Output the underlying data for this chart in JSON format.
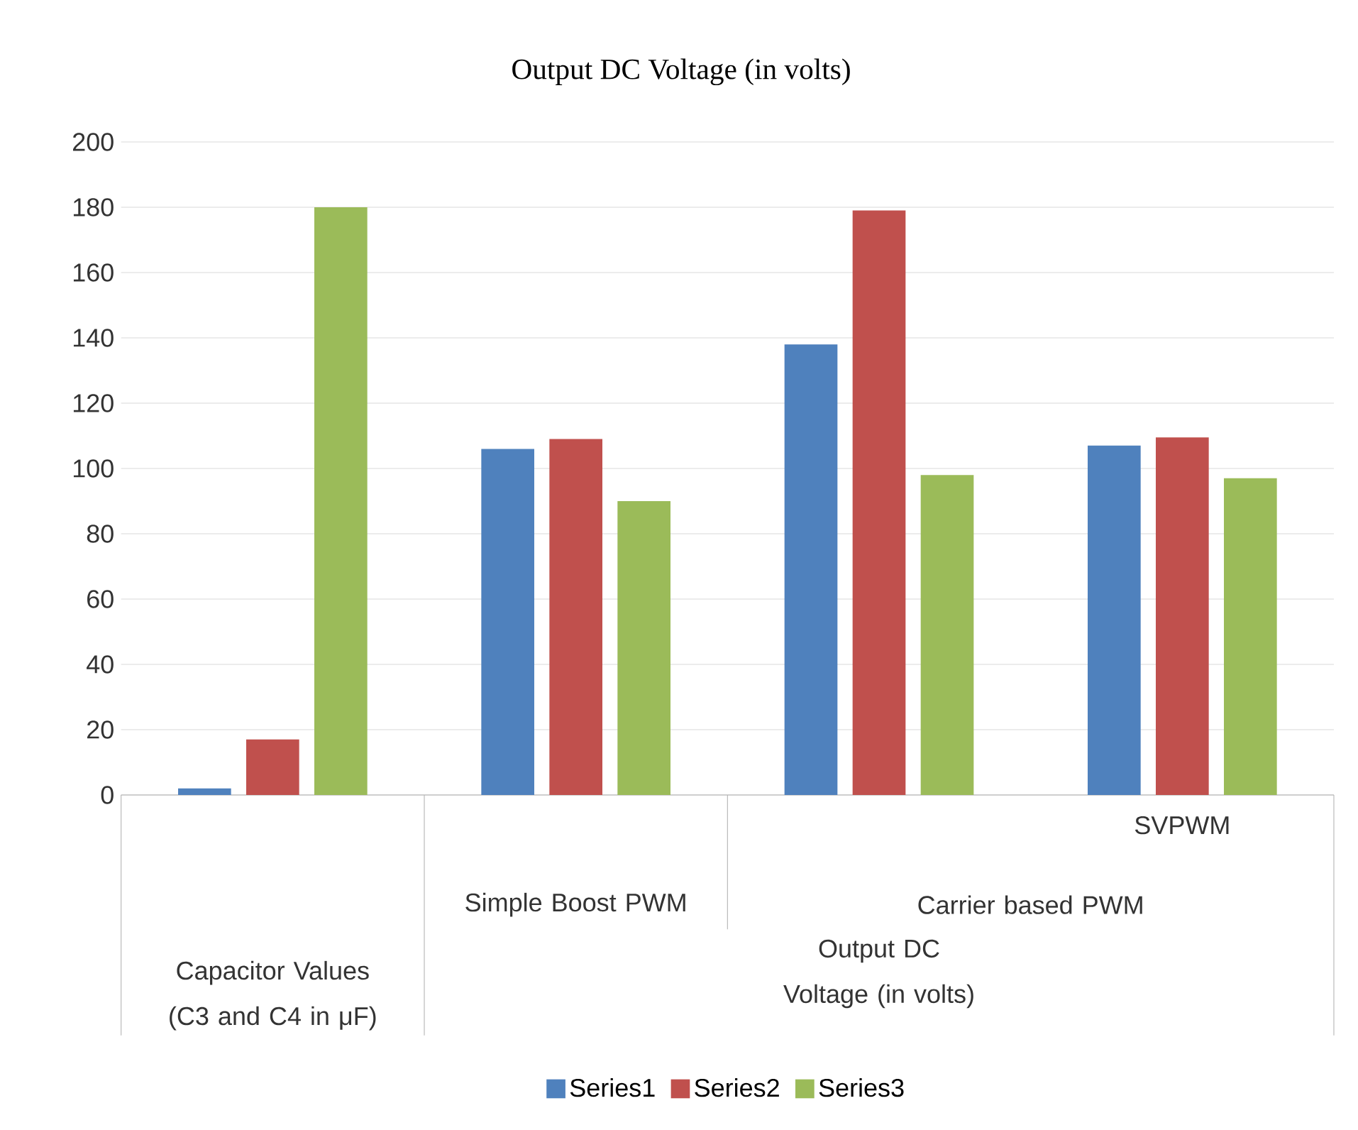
{
  "chart_data": {
    "type": "bar",
    "title": "Output DC Voltage (in volts)",
    "categories": [
      null,
      null,
      null,
      "SVPWM"
    ],
    "series": [
      {
        "name": "Series1",
        "color": "#4f81bd",
        "values": [
          2,
          106,
          138,
          107
        ]
      },
      {
        "name": "Series2",
        "color": "#c0504d",
        "values": [
          17,
          109,
          179,
          109.5
        ]
      },
      {
        "name": "Series3",
        "color": "#9bbb59",
        "values": [
          180,
          90,
          98,
          97
        ]
      }
    ],
    "ylim": [
      0,
      200
    ],
    "yticks": [
      0,
      20,
      40,
      60,
      80,
      100,
      120,
      140,
      160,
      180,
      200
    ],
    "grid": "y",
    "legend": "bottom",
    "annotations": [
      "Simple Boost PWM",
      "Carrier based PWM",
      "Capacitor Values (C3 and C4 in μF)",
      "Output DC Voltage (in volts)"
    ]
  }
}
